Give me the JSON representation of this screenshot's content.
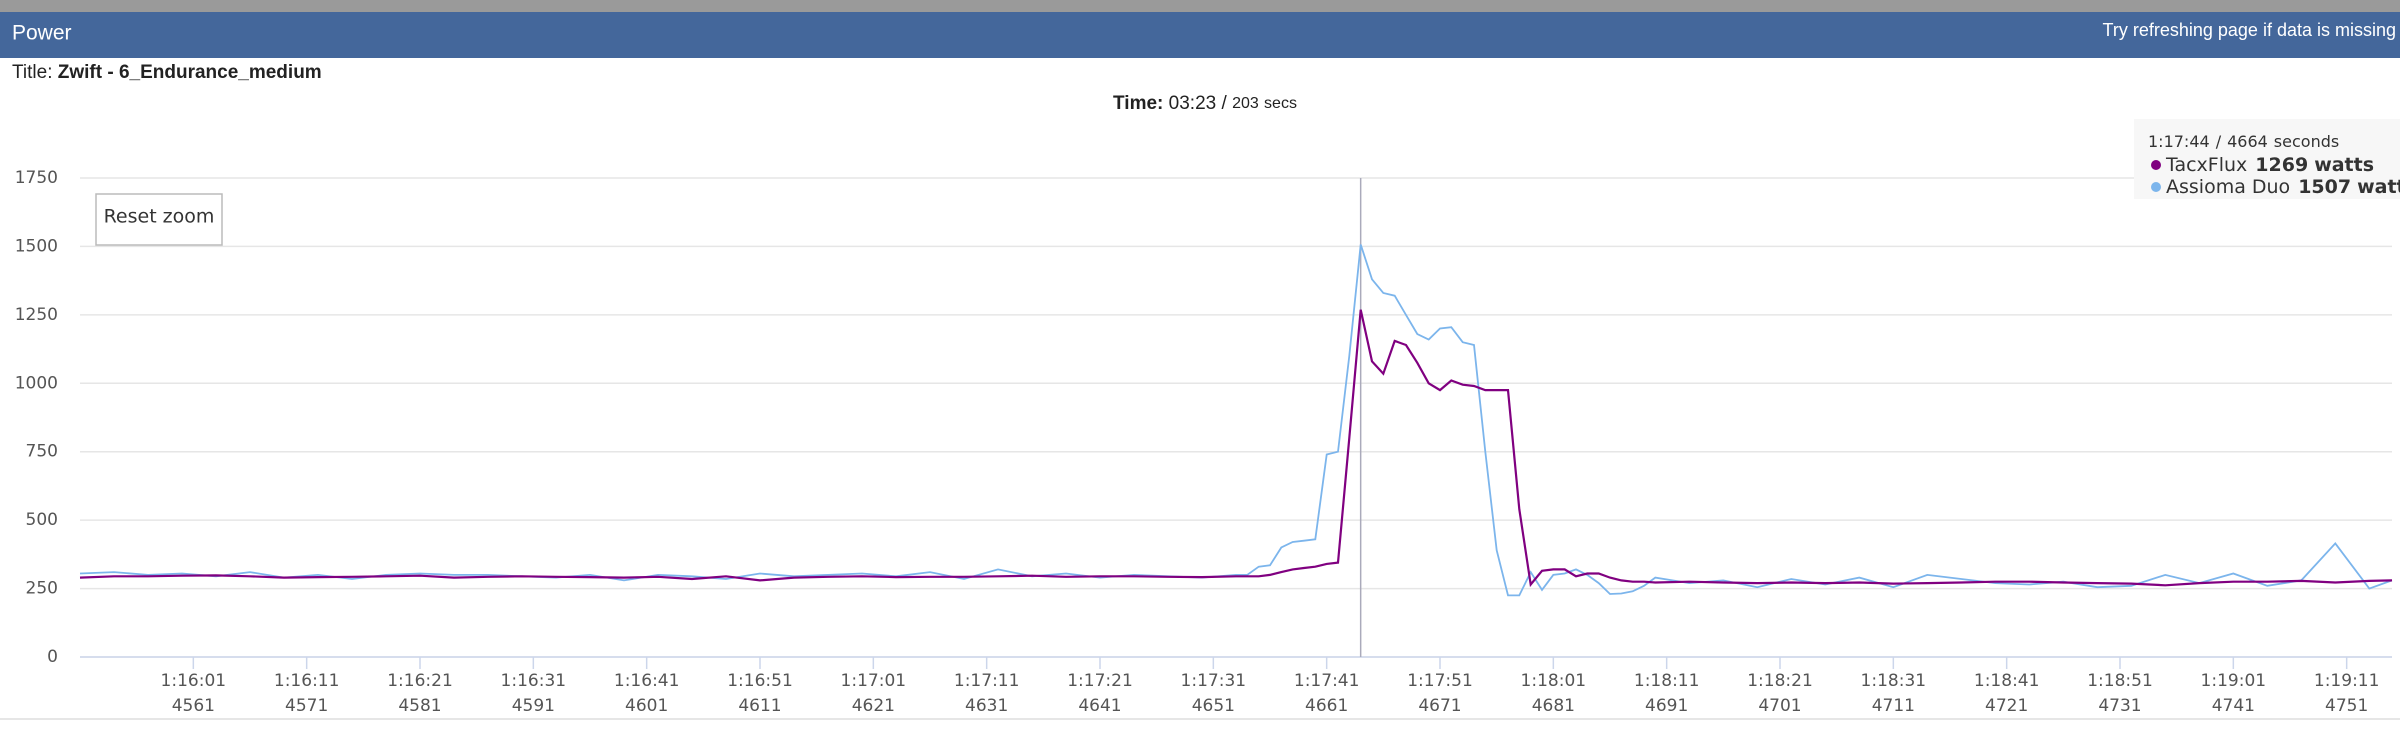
{
  "header": {
    "title": "Power",
    "notice": "Try refreshing page if data is missing"
  },
  "chart_data": {
    "type": "line",
    "title_label": "Title:",
    "title": "Zwift - 6_Endurance_medium",
    "time_label": "Time:",
    "time_value": "03:23",
    "time_sep": "/",
    "duration": 203,
    "duration_unit": "secs",
    "reset_button": "Reset zoom",
    "x": [
      4551,
      4554,
      4557,
      4560,
      4563,
      4566,
      4569,
      4572,
      4575,
      4578,
      4581,
      4584,
      4587,
      4590,
      4593,
      4596,
      4599,
      4602,
      4605,
      4608,
      4611,
      4614,
      4617,
      4620,
      4623,
      4626,
      4629,
      4632,
      4635,
      4638,
      4641,
      4644,
      4647,
      4650,
      4653,
      4654,
      4655,
      4656,
      4657,
      4658,
      4659,
      4660,
      4661,
      4662,
      4663,
      4664,
      4665,
      4666,
      4667,
      4668,
      4669,
      4670,
      4671,
      4672,
      4673,
      4674,
      4675,
      4676,
      4677,
      4678,
      4679,
      4680,
      4681,
      4682,
      4683,
      4684,
      4685,
      4686,
      4687,
      4688,
      4689,
      4690,
      4693,
      4696,
      4699,
      4702,
      4705,
      4708,
      4711,
      4714,
      4717,
      4720,
      4723,
      4726,
      4729,
      4732,
      4735,
      4738,
      4741,
      4744,
      4747,
      4750,
      4753,
      4755
    ],
    "series": [
      {
        "name": "TacxFlux",
        "color": "#800080",
        "values": [
          290,
          295,
          295,
          297,
          298,
          295,
          290,
          292,
          293,
          295,
          297,
          290,
          293,
          295,
          293,
          292,
          290,
          293,
          285,
          295,
          280,
          290,
          293,
          295,
          292,
          293,
          293,
          295,
          297,
          293,
          295,
          295,
          293,
          292,
          295,
          295,
          295,
          300,
          310,
          320,
          325,
          330,
          340,
          345,
          800,
          1269,
          1080,
          1035,
          1155,
          1140,
          1075,
          1000,
          975,
          1010,
          995,
          990,
          975,
          975,
          975,
          540,
          265,
          315,
          320,
          320,
          295,
          305,
          305,
          290,
          280,
          275,
          275,
          272,
          275,
          272,
          270,
          272,
          270,
          272,
          268,
          270,
          272,
          275,
          275,
          272,
          270,
          268,
          262,
          270,
          275,
          275,
          278,
          272,
          278,
          280
        ]
      },
      {
        "name": "Assioma Duo",
        "color": "#7cb5ec",
        "values": [
          305,
          310,
          300,
          305,
          295,
          310,
          290,
          300,
          285,
          300,
          305,
          300,
          300,
          295,
          290,
          300,
          280,
          300,
          295,
          285,
          305,
          295,
          300,
          305,
          295,
          310,
          285,
          320,
          295,
          305,
          290,
          300,
          295,
          290,
          300,
          300,
          330,
          335,
          400,
          420,
          425,
          430,
          740,
          750,
          1100,
          1507,
          1380,
          1330,
          1320,
          1250,
          1180,
          1160,
          1200,
          1205,
          1150,
          1140,
          750,
          390,
          225,
          225,
          310,
          245,
          300,
          305,
          320,
          300,
          270,
          230,
          232,
          240,
          260,
          290,
          270,
          280,
          255,
          285,
          265,
          290,
          255,
          300,
          285,
          270,
          265,
          275,
          255,
          260,
          300,
          270,
          305,
          260,
          280,
          415,
          250,
          280
        ]
      }
    ],
    "xlim": [
      4551,
      4755
    ],
    "ylim": [
      0,
      1750
    ],
    "yticks": [
      0,
      250,
      500,
      750,
      1000,
      1250,
      1500,
      1750
    ],
    "xticks": [
      {
        "value": 4561,
        "label": "1:16:01"
      },
      {
        "value": 4571,
        "label": "1:16:11"
      },
      {
        "value": 4581,
        "label": "1:16:21"
      },
      {
        "value": 4591,
        "label": "1:16:31"
      },
      {
        "value": 4601,
        "label": "1:16:41"
      },
      {
        "value": 4611,
        "label": "1:16:51"
      },
      {
        "value": 4621,
        "label": "1:17:01"
      },
      {
        "value": 4631,
        "label": "1:17:11"
      },
      {
        "value": 4641,
        "label": "1:17:21"
      },
      {
        "value": 4651,
        "label": "1:17:31"
      },
      {
        "value": 4661,
        "label": "1:17:41"
      },
      {
        "value": 4671,
        "label": "1:17:51"
      },
      {
        "value": 4681,
        "label": "1:18:01"
      },
      {
        "value": 4691,
        "label": "1:18:11"
      },
      {
        "value": 4701,
        "label": "1:18:21"
      },
      {
        "value": 4711,
        "label": "1:18:31"
      },
      {
        "value": 4721,
        "label": "1:18:41"
      },
      {
        "value": 4731,
        "label": "1:18:51"
      },
      {
        "value": 4741,
        "label": "1:19:01"
      },
      {
        "value": 4751,
        "label": "1:19:11"
      }
    ],
    "grid": true,
    "tooltip": {
      "time": "1:17:44",
      "index": 45,
      "x_unit": "seconds",
      "unit": "watts"
    }
  }
}
